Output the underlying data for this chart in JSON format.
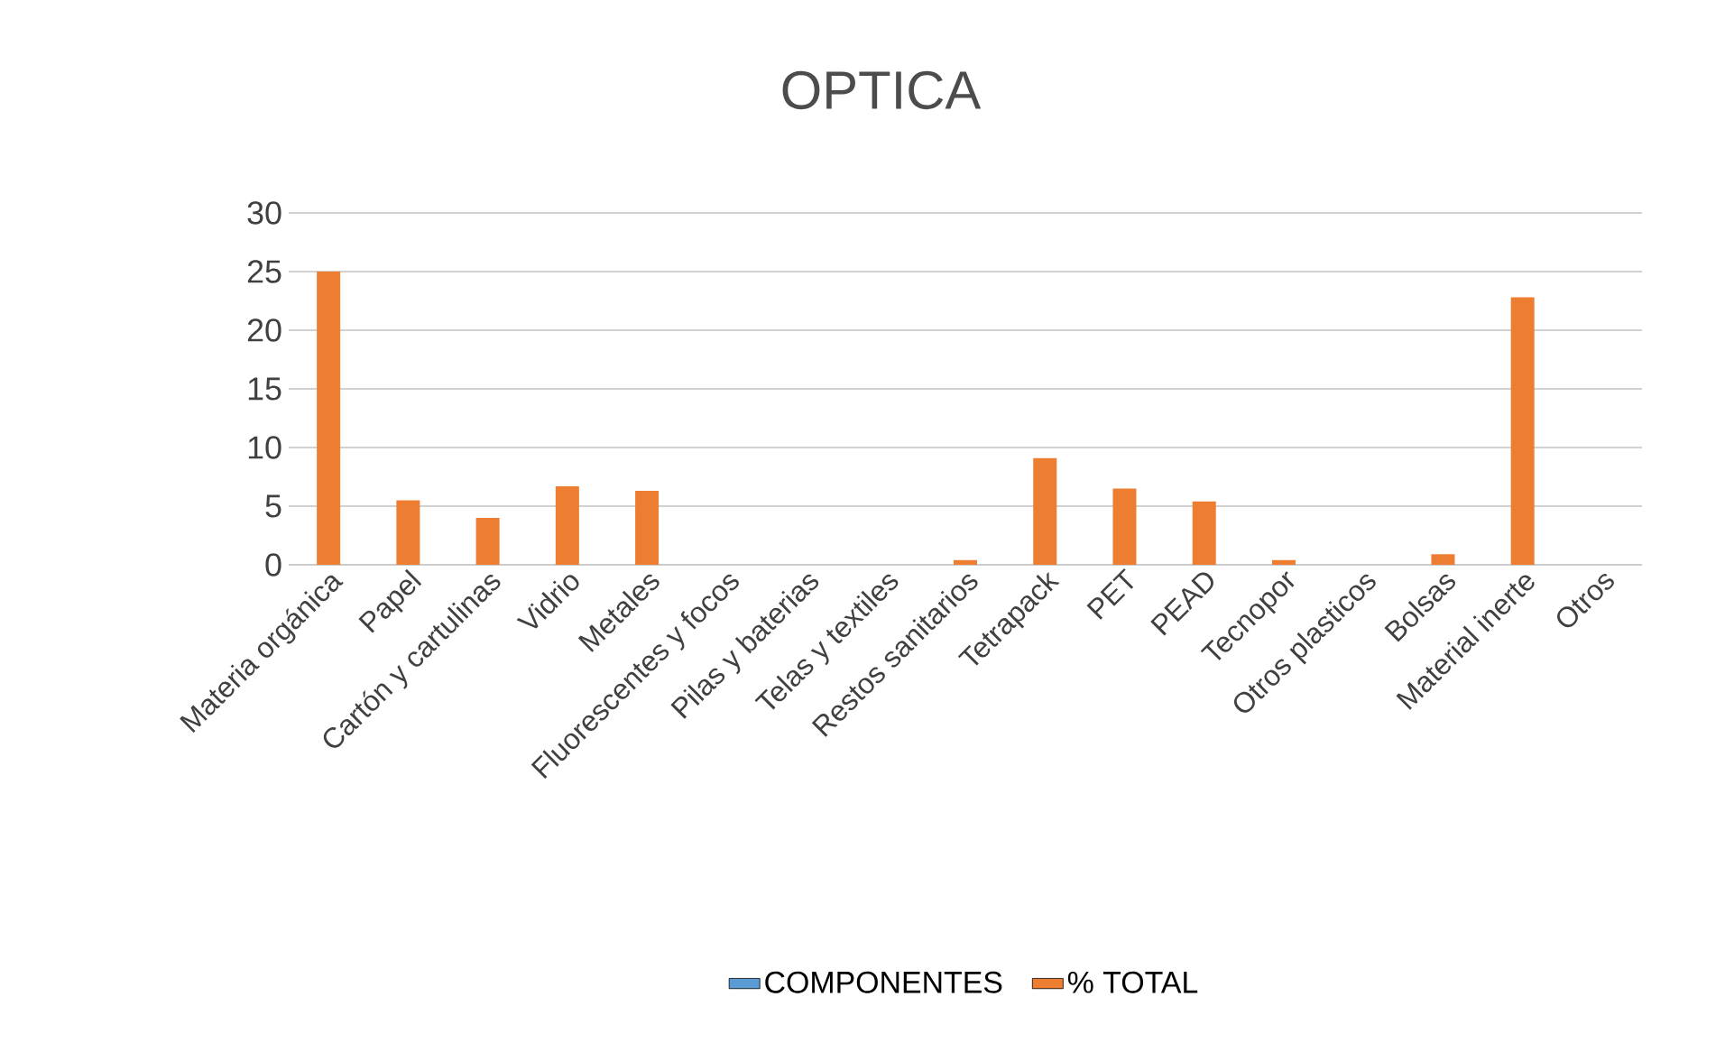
{
  "chart_data": {
    "type": "bar",
    "title": "OPTICA",
    "categories": [
      "Materia orgánica",
      "Papel",
      "Cartón y cartulinas",
      "Vidrio",
      "Metales",
      "Fluorescentes y focos",
      "Pilas y baterias",
      "Telas y textiles",
      "Restos sanitarios",
      "Tetrapack",
      "PET",
      "PEAD",
      "Tecnopor",
      "Otros plasticos",
      "Bolsas",
      "Material inerte",
      "Otros"
    ],
    "series": [
      {
        "name": "COMPONENTES",
        "color": "#5b9bd5",
        "values": [
          null,
          null,
          null,
          null,
          null,
          null,
          null,
          null,
          null,
          null,
          null,
          null,
          null,
          null,
          null,
          null,
          null
        ]
      },
      {
        "name": "% TOTAL",
        "color": "#ed7d31",
        "values": [
          25,
          5.5,
          4,
          6.7,
          6.3,
          0,
          0,
          0,
          0.4,
          9.1,
          6.5,
          5.4,
          0.4,
          0,
          0.9,
          22.8,
          0
        ]
      }
    ],
    "ylim": [
      0,
      30
    ],
    "yticks": [
      0,
      5,
      10,
      15,
      20,
      25,
      30
    ],
    "grid": "y",
    "legend": "bottom"
  }
}
